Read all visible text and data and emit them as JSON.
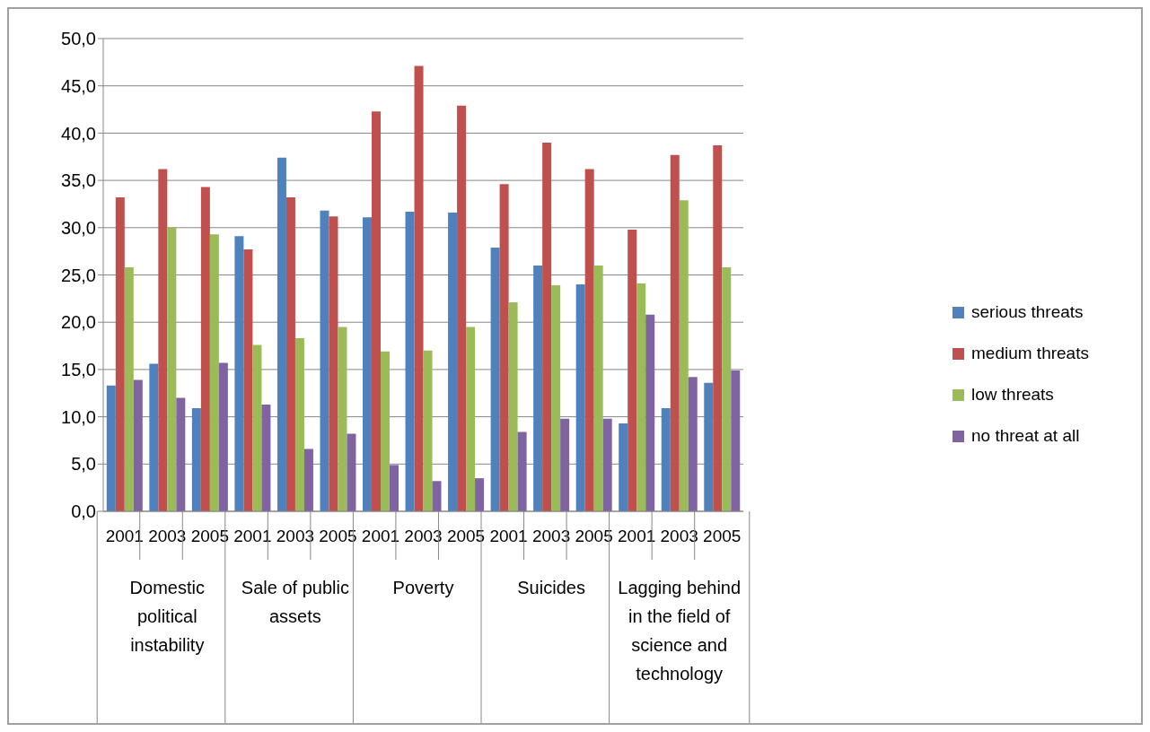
{
  "chart_data": {
    "type": "bar",
    "categories": [
      "2001",
      "2003",
      "2005",
      "2001",
      "2003",
      "2005",
      "2001",
      "2003",
      "2005",
      "2001",
      "2003",
      "2005",
      "2001",
      "2003",
      "2005"
    ],
    "annotations": [
      "Domestic political instability",
      "Sale of public assets",
      "Poverty",
      "Suicides",
      "Lagging behind in the field of science and technology"
    ],
    "series": [
      {
        "name": "serious threats",
        "color": "#4f81bd",
        "values": [
          13.3,
          15.6,
          10.9,
          29.1,
          37.4,
          31.8,
          31.1,
          31.7,
          31.6,
          27.9,
          26.0,
          24.0,
          9.3,
          10.9,
          13.6
        ]
      },
      {
        "name": "medium threats",
        "color": "#c0504d",
        "values": [
          33.2,
          36.2,
          34.3,
          27.7,
          33.2,
          31.2,
          42.3,
          47.1,
          42.9,
          34.6,
          39.0,
          36.2,
          29.8,
          37.7,
          38.7
        ]
      },
      {
        "name": "low threats",
        "color": "#9bbb59",
        "values": [
          25.8,
          30.0,
          29.3,
          17.6,
          18.3,
          19.5,
          16.9,
          17.0,
          19.5,
          22.1,
          23.9,
          26.0,
          24.1,
          32.9,
          25.8
        ]
      },
      {
        "name": "no threat at all",
        "color": "#8064a2",
        "values": [
          13.9,
          12.0,
          15.7,
          11.3,
          6.6,
          8.2,
          4.9,
          3.2,
          3.5,
          8.4,
          9.8,
          9.8,
          20.8,
          14.2,
          14.9
        ]
      }
    ],
    "ylim": [
      0,
      50
    ],
    "yticks": [
      {
        "value": 0,
        "label": "0,0"
      },
      {
        "value": 5,
        "label": "5,0"
      },
      {
        "value": 10,
        "label": "10,0"
      },
      {
        "value": 15,
        "label": "15,0"
      },
      {
        "value": 20,
        "label": "20,0"
      },
      {
        "value": 25,
        "label": "25,0"
      },
      {
        "value": 30,
        "label": "30,0"
      },
      {
        "value": 35,
        "label": "35,0"
      },
      {
        "value": 40,
        "label": "40,0"
      },
      {
        "value": 45,
        "label": "45,0"
      },
      {
        "value": 50,
        "label": "50,0"
      }
    ],
    "grid": "y",
    "legend": "right"
  }
}
